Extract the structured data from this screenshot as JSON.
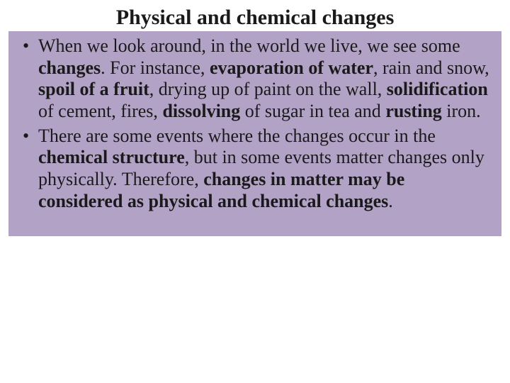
{
  "slide": {
    "title": "Physical and chemical changes",
    "title_fontsize": 30,
    "body_fontsize": 26,
    "line_height": 1.18,
    "content_bg": "#b2a3c6",
    "page_bg": "#ffffff",
    "text_color": "#1a1a1a",
    "bullets": [
      {
        "runs": [
          {
            "t": "When we look around, in the world we live, we see some ",
            "b": false
          },
          {
            "t": "changes",
            "b": true
          },
          {
            "t": ". For instance, ",
            "b": false
          },
          {
            "t": "evaporation of water",
            "b": true
          },
          {
            "t": ", rain and snow, ",
            "b": false
          },
          {
            "t": "spoil of a fruit",
            "b": true
          },
          {
            "t": ", drying up of paint on the wall, ",
            "b": false
          },
          {
            "t": "solidification",
            "b": true
          },
          {
            "t": " of cement, fires, ",
            "b": false
          },
          {
            "t": "dissolving",
            "b": true
          },
          {
            "t": " of sugar in tea and ",
            "b": false
          },
          {
            "t": "rusting",
            "b": true
          },
          {
            "t": " iron.",
            "b": false
          }
        ]
      },
      {
        "runs": [
          {
            "t": "There are some events where the changes occur in the ",
            "b": false
          },
          {
            "t": "chemical structure",
            "b": true
          },
          {
            "t": ", but in some events matter changes only physically. Therefore, ",
            "b": false
          },
          {
            "t": "changes in matter may be considered as physical and chemical changes",
            "b": true
          },
          {
            "t": ".",
            "b": false
          }
        ]
      }
    ]
  }
}
